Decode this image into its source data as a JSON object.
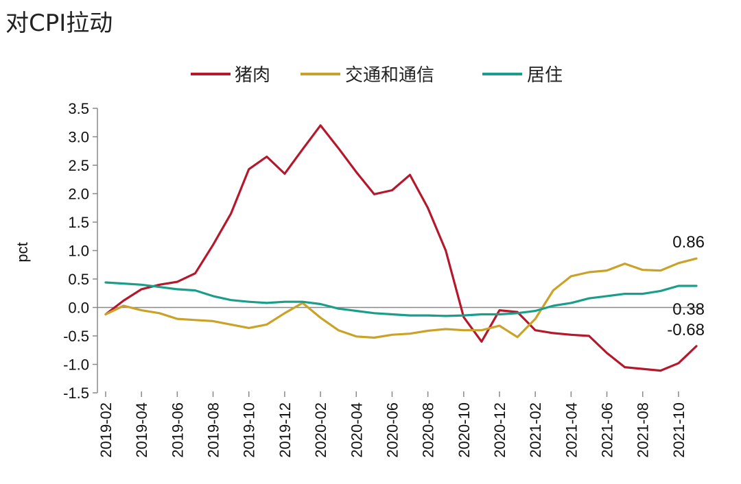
{
  "chart_data": {
    "type": "line",
    "title": "对CPI拉动",
    "ylabel": "pct",
    "ylim": [
      -1.5,
      3.5
    ],
    "yticks": [
      "3.5",
      "3.0",
      "2.5",
      "2.0",
      "1.5",
      "1.0",
      "0.5",
      "0.0",
      "-0.5",
      "-1.0",
      "-1.5"
    ],
    "x": [
      "2019-02",
      "2019-03",
      "2019-04",
      "2019-05",
      "2019-06",
      "2019-07",
      "2019-08",
      "2019-09",
      "2019-10",
      "2019-11",
      "2019-12",
      "2020-01",
      "2020-02",
      "2020-03",
      "2020-04",
      "2020-05",
      "2020-06",
      "2020-07",
      "2020-08",
      "2020-09",
      "2020-10",
      "2020-11",
      "2020-12",
      "2021-01",
      "2021-02",
      "2021-03",
      "2021-04",
      "2021-05",
      "2021-06",
      "2021-07",
      "2021-08",
      "2021-09",
      "2021-10",
      "2021-11"
    ],
    "xtick_labels": [
      "2019-02",
      "2019-04",
      "2019-06",
      "2019-08",
      "2019-10",
      "2019-12",
      "2020-02",
      "2020-04",
      "2020-06",
      "2020-08",
      "2020-10",
      "2020-12",
      "2021-02",
      "2021-04",
      "2021-06",
      "2021-08",
      "2021-10"
    ],
    "legend_position": "top",
    "series": [
      {
        "name": "猪肉",
        "color": "#b5172c",
        "values": [
          -0.12,
          0.12,
          0.32,
          0.4,
          0.45,
          0.6,
          1.1,
          1.65,
          2.43,
          2.65,
          2.35,
          2.78,
          3.2,
          2.8,
          2.38,
          1.99,
          2.06,
          2.33,
          1.75,
          1.0,
          -0.17,
          -0.6,
          -0.05,
          -0.08,
          -0.4,
          -0.45,
          -0.48,
          -0.5,
          -0.8,
          -1.05,
          -1.08,
          -1.11,
          -0.98,
          -0.68
        ]
      },
      {
        "name": "交通和通信",
        "color": "#c9a227",
        "values": [
          -0.12,
          0.03,
          -0.05,
          -0.1,
          -0.2,
          -0.22,
          -0.24,
          -0.3,
          -0.36,
          -0.3,
          -0.1,
          0.08,
          -0.18,
          -0.4,
          -0.51,
          -0.53,
          -0.48,
          -0.46,
          -0.41,
          -0.38,
          -0.4,
          -0.4,
          -0.32,
          -0.52,
          -0.2,
          0.3,
          0.55,
          0.62,
          0.65,
          0.77,
          0.66,
          0.65,
          0.78,
          0.86
        ]
      },
      {
        "name": "居住",
        "color": "#1a9e8a",
        "values": [
          0.44,
          0.42,
          0.4,
          0.36,
          0.32,
          0.3,
          0.2,
          0.13,
          0.1,
          0.08,
          0.1,
          0.1,
          0.06,
          -0.02,
          -0.06,
          -0.1,
          -0.12,
          -0.14,
          -0.14,
          -0.15,
          -0.14,
          -0.12,
          -0.12,
          -0.1,
          -0.06,
          0.03,
          0.08,
          0.16,
          0.2,
          0.24,
          0.24,
          0.29,
          0.38,
          0.38
        ]
      }
    ],
    "annotations": [
      {
        "text": "0.86",
        "series": 1,
        "index": 33,
        "position": "above"
      },
      {
        "text": "0.38",
        "series": 2,
        "index": 33,
        "position": "below"
      },
      {
        "text": "-0.68",
        "series": 0,
        "index": 33,
        "position": "above"
      }
    ]
  }
}
